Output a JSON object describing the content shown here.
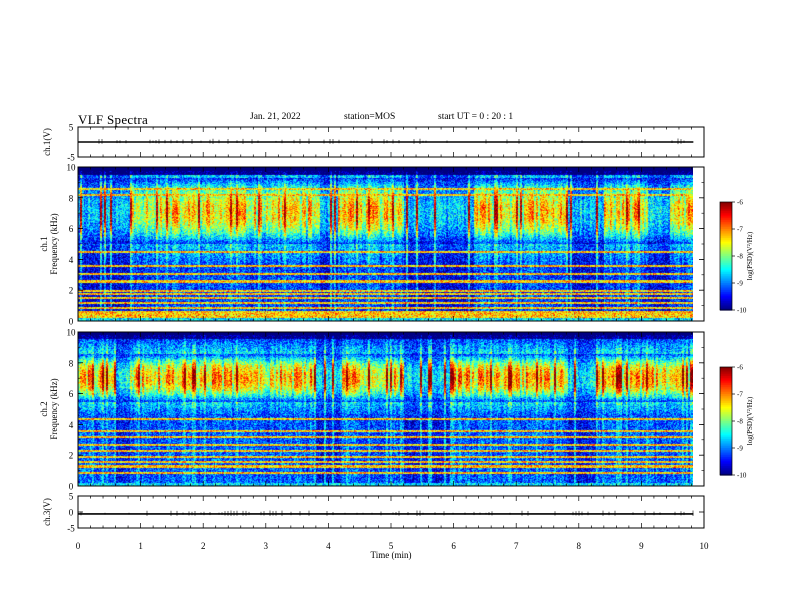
{
  "header": {
    "title": "VLF Spectra",
    "date": "Jan. 21, 2022",
    "station": "station=MOS",
    "start_ut": "start UT =  0 : 20 : 1"
  },
  "chart_data": [
    {
      "type": "line",
      "name": "ch1_waveform",
      "ylabel": "ch.1(V)",
      "ylim": [
        -5,
        5
      ],
      "y_ticks": [
        "5",
        "-5"
      ],
      "x_range_min": [
        0,
        9.83
      ],
      "approx_level_V": 0,
      "xlim": [
        0,
        10
      ]
    },
    {
      "type": "heatmap",
      "name": "ch1_spectrogram",
      "ylabel": "ch.1\nFrequency (kHz)",
      "ylim": [
        0,
        10
      ],
      "y_ticks": [
        "0",
        "2",
        "4",
        "6",
        "8",
        "10"
      ],
      "xlim": [
        0,
        10
      ],
      "data_x_range_min": [
        0,
        9.83
      ],
      "colorbar": {
        "label": "log(PSD)(V²/Hz)",
        "range": [
          -10,
          -6
        ],
        "ticks": [
          "-6",
          "-7",
          "-8",
          "-9",
          "-10"
        ],
        "colormap": "jet"
      },
      "features": {
        "band_kHz": [
          5,
          9.3
        ],
        "band_peak_log_psd": -7,
        "background_log_psd": -9.5,
        "lines_kHz": [
          0.3,
          0.45,
          0.6,
          0.9,
          1.2,
          1.5,
          1.8,
          2.0,
          2.6,
          3.1,
          3.6,
          4.5,
          8.2,
          8.6
        ],
        "dark_cap_kHz": [
          9.5,
          10
        ],
        "quiet_intervals_min": [
          [
            0,
            0.8
          ],
          [
            3.85,
            4.15
          ],
          [
            5.2,
            6.3
          ],
          [
            7.8,
            8.4
          ],
          [
            9.1,
            9.45
          ]
        ],
        "seed": 11
      }
    },
    {
      "type": "heatmap",
      "name": "ch2_spectrogram",
      "ylabel": "ch.2\nFrequency (kHz)",
      "ylim": [
        0,
        10
      ],
      "y_ticks": [
        "0",
        "2",
        "4",
        "6",
        "8",
        "10"
      ],
      "xlim": [
        0,
        10
      ],
      "data_x_range_min": [
        0,
        9.83
      ],
      "colorbar": {
        "label": "log(PSD)(V²/Hz)",
        "range": [
          -10,
          -6
        ],
        "ticks": [
          "-6",
          "-7",
          "-8",
          "-9",
          "-10"
        ],
        "colormap": "jet"
      },
      "features": {
        "band_kHz": [
          5.5,
          8.6
        ],
        "band_peak_log_psd": -6.8,
        "background_log_psd": -9.4,
        "lines_kHz": [
          0.9,
          1.3,
          1.6,
          1.9,
          2.3,
          2.7,
          3.2,
          3.6,
          4.4
        ],
        "dark_cap_kHz": [
          9.6,
          10
        ],
        "quiet_intervals_min": [
          [
            0.6,
            0.8
          ],
          [
            3.8,
            4.2
          ],
          [
            5.2,
            6.0
          ],
          [
            7.8,
            8.3
          ]
        ],
        "seed": 29
      }
    },
    {
      "type": "line",
      "name": "ch3_waveform",
      "ylabel": "ch.3(V)",
      "ylim": [
        -5,
        5
      ],
      "y_ticks": [
        "5",
        "0",
        "-5"
      ],
      "x_range_min": [
        0,
        9.83
      ],
      "approx_level_V": -0.6,
      "xlim": [
        0,
        10
      ]
    }
  ],
  "x_axis": {
    "label": "Time (min)",
    "range": [
      0,
      10
    ],
    "ticks": [
      "0",
      "1",
      "2",
      "3",
      "4",
      "5",
      "6",
      "7",
      "8",
      "9",
      "10"
    ]
  }
}
